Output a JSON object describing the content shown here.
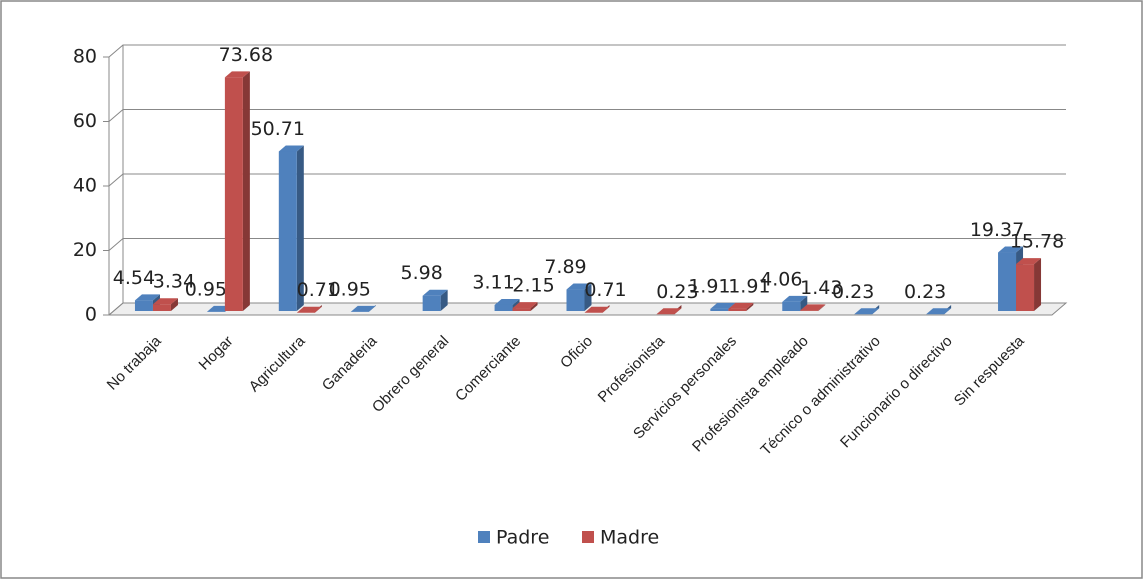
{
  "chart_data": {
    "type": "bar",
    "categories": [
      "No trabaja",
      "Hogar",
      "Agricultura",
      "Ganaderia",
      "Obrero general",
      "Comerciante",
      "Oficio",
      "Profesionista",
      "Servicios personales",
      "Profesionista empleado",
      "Técnico o administrativo",
      "Funcionario o directivo",
      "Sin respuesta"
    ],
    "series": [
      {
        "name": "Padre",
        "color": "#4f81bd",
        "values": [
          4.54,
          0.95,
          50.71,
          0.95,
          5.98,
          3.11,
          7.89,
          null,
          1.91,
          4.06,
          0.23,
          0.23,
          19.37
        ]
      },
      {
        "name": "Madre",
        "color": "#c0504d",
        "values": [
          3.34,
          73.68,
          0.71,
          null,
          null,
          2.15,
          0.71,
          0.23,
          1.91,
          1.43,
          null,
          null,
          15.78
        ]
      }
    ],
    "ylim": [
      0,
      80
    ],
    "yticks": [
      0,
      20,
      40,
      60,
      80
    ],
    "grid": true,
    "legend": "bottom"
  }
}
